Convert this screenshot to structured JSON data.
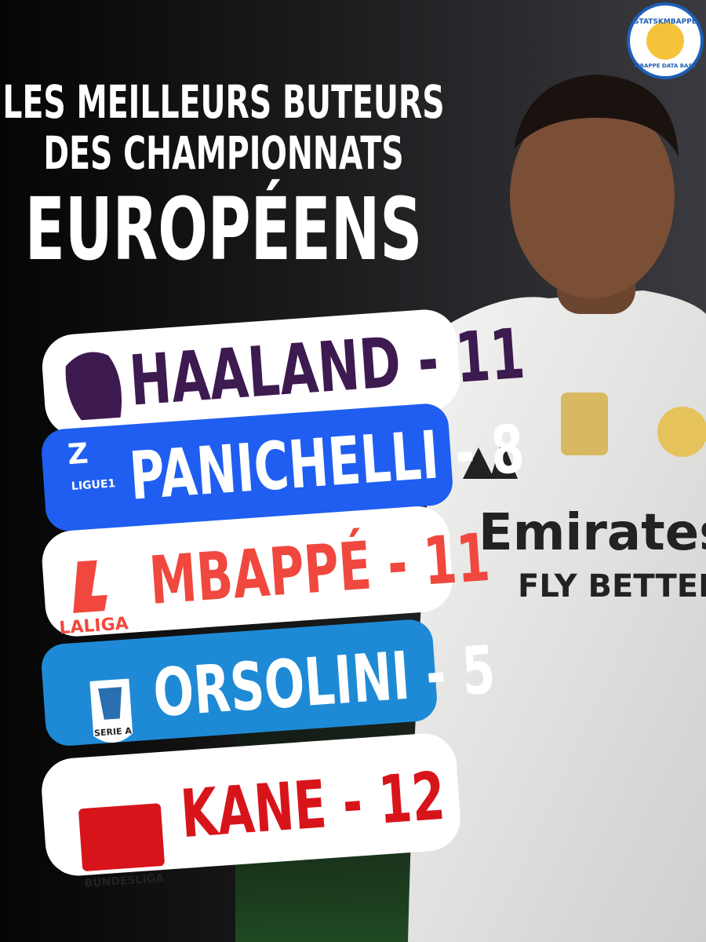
{
  "badge": {
    "top": "STATSKMBAPPE",
    "bottom": "MBAPPE DATA BASE"
  },
  "title": {
    "lines": [
      "LES MEILLEURS BUTEURS",
      "DES CHAMPIONNATS",
      "EUROPÉENS"
    ]
  },
  "photo": {
    "sponsor": "Emirates",
    "slogan": "FLY BETTER"
  },
  "rows": [
    {
      "text": "HAALAND - 11"
    },
    {
      "text": "PANICHELLI - 8",
      "league": "LIGUE1"
    },
    {
      "text": "MBAPPÉ - 11",
      "league": "LALIGA"
    },
    {
      "text": "ORSOLINI - 5",
      "league": "SERIE A"
    },
    {
      "text": "KANE - 12",
      "league": "BUNDESLIGA"
    }
  ]
}
